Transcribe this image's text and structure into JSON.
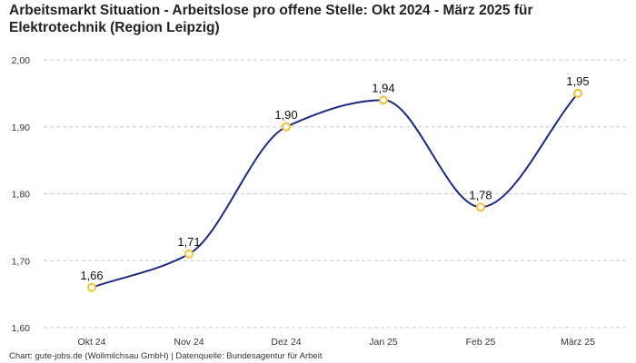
{
  "chart_data": {
    "type": "line",
    "title": "Arbeitsmarkt Situation - Arbeitslose pro offene Stelle: Okt 2024 - März 2025 für Elektrotechnik (Region Leipzig)",
    "categories": [
      "Okt 24",
      "Nov 24",
      "Dez 24",
      "Jan 25",
      "Feb 25",
      "März 25"
    ],
    "series": [
      {
        "values": [
          1.66,
          1.71,
          1.9,
          1.94,
          1.78,
          1.95
        ],
        "labels": [
          "1,66",
          "1,71",
          "1,90",
          "1,94",
          "1,78",
          "1,95"
        ]
      }
    ],
    "ylim": [
      1.6,
      2.0
    ],
    "yticks": [
      2.0,
      1.9,
      1.8,
      1.7,
      1.6
    ],
    "ytick_labels": [
      "2,00",
      "1,90",
      "1,80",
      "1,70",
      "1,60"
    ],
    "grid": true,
    "line_color": "#1a2a80",
    "marker_color": "#f2c12e",
    "grid_color": "#cccccc"
  },
  "footer": "Chart: gute-jobs.de (Wollmilchsau GmbH) | Datenquelle: Bundesagentur für Arbeit"
}
